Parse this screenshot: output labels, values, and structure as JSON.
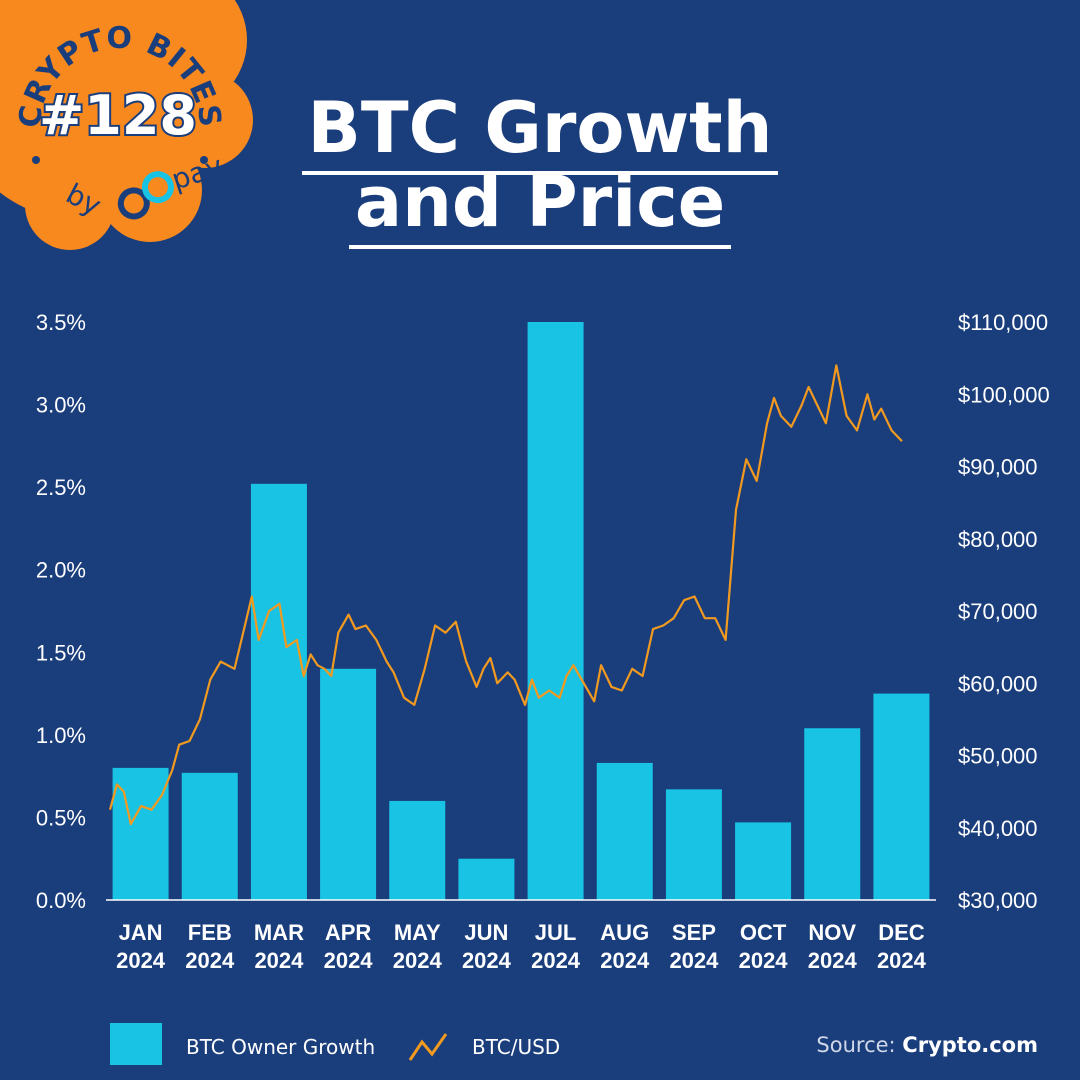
{
  "badge": {
    "top_text": "CRYPTO BITES",
    "number": "#128",
    "bottom_text": "by",
    "brand": "alphapay",
    "color": "#f7891f"
  },
  "title": {
    "line1": "BTC Growth",
    "line2": "and Price"
  },
  "chart_data": {
    "type": "bar",
    "categories": [
      "JAN\n2024",
      "FEB\n2024",
      "MAR\n2024",
      "APR\n2024",
      "MAY\n2024",
      "JUN\n2024",
      "JUL\n2024",
      "AUG\n2024",
      "SEP\n2024",
      "OCT\n2024",
      "NOV\n2024",
      "DEC\n2024"
    ],
    "series": [
      {
        "name": "BTC Owner Growth",
        "type": "bar",
        "axis": "left",
        "color": "#18c3e4",
        "values": [
          0.8,
          0.77,
          2.52,
          1.4,
          0.6,
          0.25,
          3.5,
          0.83,
          0.67,
          0.47,
          1.04,
          1.25
        ]
      },
      {
        "name": "BTC/USD",
        "type": "line",
        "axis": "right",
        "color": "#f29a20",
        "x": [
          0.0,
          0.1,
          0.2,
          0.3,
          0.45,
          0.6,
          0.75,
          0.9,
          1.0,
          1.15,
          1.3,
          1.45,
          1.6,
          1.8,
          1.95,
          2.05,
          2.15,
          2.3,
          2.45,
          2.55,
          2.7,
          2.8,
          2.9,
          3.0,
          3.1,
          3.2,
          3.3,
          3.45,
          3.55,
          3.7,
          3.85,
          4.0,
          4.1,
          4.25,
          4.4,
          4.55,
          4.7,
          4.85,
          5.0,
          5.15,
          5.3,
          5.4,
          5.5,
          5.6,
          5.75,
          5.85,
          6.0,
          6.1,
          6.2,
          6.35,
          6.5,
          6.6,
          6.7,
          6.85,
          7.0,
          7.1,
          7.25,
          7.4,
          7.55,
          7.7,
          7.85,
          8.0,
          8.15,
          8.3,
          8.45,
          8.6,
          8.75,
          8.9,
          9.05,
          9.2,
          9.35,
          9.5,
          9.6,
          9.7,
          9.85,
          10.0,
          10.1,
          10.2,
          10.35,
          10.5,
          10.65,
          10.8,
          10.95,
          11.05,
          11.15,
          11.3,
          11.45
        ],
        "values": [
          42500,
          46000,
          45000,
          40500,
          43000,
          42500,
          44500,
          48000,
          51500,
          52000,
          55000,
          60500,
          63000,
          62000,
          68000,
          72000,
          66000,
          70000,
          71000,
          65000,
          66000,
          61000,
          64000,
          62500,
          62000,
          61000,
          67000,
          69500,
          67500,
          68000,
          66000,
          63000,
          61500,
          58000,
          57000,
          62000,
          68000,
          67000,
          68500,
          63000,
          59500,
          62000,
          63500,
          60000,
          61500,
          60500,
          57000,
          60500,
          58000,
          59000,
          58000,
          61000,
          62500,
          60000,
          57500,
          62500,
          59500,
          59000,
          62000,
          61000,
          67500,
          68000,
          69000,
          71500,
          72000,
          69000,
          69000,
          66000,
          84000,
          91000,
          88000,
          96000,
          99500,
          97000,
          95500,
          98500,
          101000,
          99000,
          96000,
          104000,
          97000,
          95000,
          100000,
          96500,
          98000,
          95000,
          93500
        ]
      }
    ],
    "y_left": {
      "ticks": [
        0.0,
        0.5,
        1.0,
        1.5,
        2.0,
        2.5,
        3.0,
        3.5
      ],
      "labels": [
        "0.0%",
        "0.5%",
        "1.0%",
        "1.5%",
        "2.0%",
        "2.5%",
        "3.0%",
        "3.5%"
      ],
      "range": [
        0,
        3.5
      ]
    },
    "y_right": {
      "ticks": [
        30000,
        40000,
        50000,
        60000,
        70000,
        80000,
        90000,
        100000,
        110000
      ],
      "labels": [
        "$30,000",
        "$40,000",
        "$50,000",
        "$60,000",
        "$70,000",
        "$80,000",
        "$90,000",
        "$100,000",
        "$110,000"
      ],
      "range": [
        30000,
        110000
      ]
    },
    "grid": false,
    "legend": "bottom-left"
  },
  "legend": {
    "bar_label": "BTC Owner Growth",
    "line_label": "BTC/USD"
  },
  "source": {
    "prefix": "Source:",
    "name": "Crypto.com"
  }
}
